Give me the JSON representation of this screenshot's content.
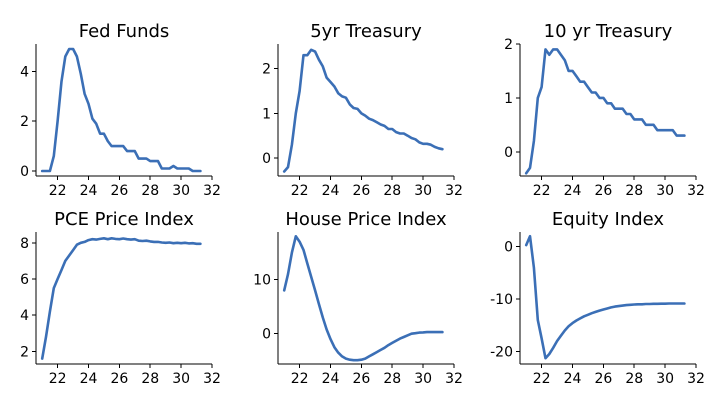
{
  "chart_data": [
    {
      "type": "line",
      "title": "Fed Funds",
      "xlabel": "",
      "ylabel": "",
      "xlim": [
        20.6,
        32
      ],
      "ylim": [
        -0.2,
        5.1
      ],
      "xticks": [
        22,
        24,
        26,
        28,
        30,
        32
      ],
      "yticks": [
        0,
        2,
        4
      ],
      "color": "#3b6fb6",
      "x": [
        21.0,
        21.25,
        21.5,
        21.75,
        22.0,
        22.25,
        22.5,
        22.75,
        23.0,
        23.25,
        23.5,
        23.75,
        24.0,
        24.25,
        24.5,
        24.75,
        25.0,
        25.25,
        25.5,
        25.75,
        26.0,
        26.25,
        26.5,
        26.75,
        27.0,
        27.25,
        27.5,
        27.75,
        28.0,
        28.25,
        28.5,
        28.75,
        29.0,
        29.25,
        29.5,
        29.75,
        30.0,
        30.25,
        30.5,
        30.75,
        31.0,
        31.25
      ],
      "y": [
        0,
        0,
        0,
        0.6,
        2.0,
        3.6,
        4.6,
        4.9,
        4.9,
        4.6,
        3.9,
        3.1,
        2.7,
        2.1,
        1.9,
        1.5,
        1.5,
        1.2,
        1.0,
        1.0,
        1.0,
        1.0,
        0.8,
        0.8,
        0.8,
        0.5,
        0.5,
        0.5,
        0.4,
        0.4,
        0.4,
        0.1,
        0.1,
        0.1,
        0.2,
        0.1,
        0.1,
        0.1,
        0.1,
        0,
        0,
        0
      ]
    },
    {
      "type": "line",
      "title": "5yr Treasury",
      "xlabel": "",
      "ylabel": "",
      "xlim": [
        20.6,
        32
      ],
      "ylim": [
        -0.4,
        2.55
      ],
      "xticks": [
        22,
        24,
        26,
        28,
        30,
        32
      ],
      "yticks": [
        0,
        1,
        2
      ],
      "color": "#3b6fb6",
      "x": [
        21.0,
        21.25,
        21.5,
        21.75,
        22.0,
        22.25,
        22.5,
        22.75,
        23.0,
        23.25,
        23.5,
        23.75,
        24.0,
        24.25,
        24.5,
        24.75,
        25.0,
        25.25,
        25.5,
        25.75,
        26.0,
        26.25,
        26.5,
        26.75,
        27.0,
        27.25,
        27.5,
        27.75,
        28.0,
        28.25,
        28.5,
        28.75,
        29.0,
        29.25,
        29.5,
        29.75,
        30.0,
        30.25,
        30.5,
        30.75,
        31.0,
        31.25
      ],
      "y": [
        -0.3,
        -0.2,
        0.3,
        1.0,
        1.5,
        2.3,
        2.3,
        2.42,
        2.38,
        2.2,
        2.05,
        1.8,
        1.7,
        1.6,
        1.45,
        1.38,
        1.35,
        1.2,
        1.12,
        1.1,
        1.0,
        0.95,
        0.88,
        0.85,
        0.8,
        0.75,
        0.72,
        0.65,
        0.65,
        0.58,
        0.55,
        0.55,
        0.5,
        0.45,
        0.42,
        0.35,
        0.32,
        0.32,
        0.3,
        0.25,
        0.22,
        0.2
      ]
    },
    {
      "type": "line",
      "title": "10 yr Treasury",
      "xlabel": "",
      "ylabel": "",
      "xlim": [
        20.6,
        32
      ],
      "ylim": [
        -0.45,
        2.0
      ],
      "xticks": [
        22,
        24,
        26,
        28,
        30,
        32
      ],
      "yticks": [
        0,
        1,
        2
      ],
      "color": "#3b6fb6",
      "x": [
        21.0,
        21.25,
        21.5,
        21.75,
        22.0,
        22.25,
        22.5,
        22.75,
        23.0,
        23.25,
        23.5,
        23.75,
        24.0,
        24.25,
        24.5,
        24.75,
        25.0,
        25.25,
        25.5,
        25.75,
        26.0,
        26.25,
        26.5,
        26.75,
        27.0,
        27.25,
        27.5,
        27.75,
        28.0,
        28.25,
        28.5,
        28.75,
        29.0,
        29.25,
        29.5,
        29.75,
        30.0,
        30.25,
        30.5,
        30.75,
        31.0,
        31.25
      ],
      "y": [
        -0.4,
        -0.3,
        0.2,
        1.0,
        1.2,
        1.9,
        1.8,
        1.9,
        1.9,
        1.8,
        1.7,
        1.5,
        1.5,
        1.4,
        1.3,
        1.3,
        1.2,
        1.1,
        1.1,
        1.0,
        1.0,
        0.9,
        0.9,
        0.8,
        0.8,
        0.8,
        0.7,
        0.7,
        0.6,
        0.6,
        0.6,
        0.5,
        0.5,
        0.5,
        0.4,
        0.4,
        0.4,
        0.4,
        0.4,
        0.3,
        0.3,
        0.3
      ]
    },
    {
      "type": "line",
      "title": "PCE Price Index",
      "xlabel": "",
      "ylabel": "",
      "xlim": [
        20.6,
        32
      ],
      "ylim": [
        1.3,
        8.6
      ],
      "xticks": [
        22,
        24,
        26,
        28,
        30,
        32
      ],
      "yticks": [
        2,
        4,
        6,
        8
      ],
      "color": "#3b6fb6",
      "x": [
        21.0,
        21.25,
        21.5,
        21.75,
        22.0,
        22.25,
        22.5,
        22.75,
        23.0,
        23.25,
        23.5,
        23.75,
        24.0,
        24.25,
        24.5,
        24.75,
        25.0,
        25.25,
        25.5,
        25.75,
        26.0,
        26.25,
        26.5,
        26.75,
        27.0,
        27.25,
        27.5,
        27.75,
        28.0,
        28.25,
        28.5,
        28.75,
        29.0,
        29.25,
        29.5,
        29.75,
        30.0,
        30.25,
        30.5,
        30.75,
        31.0,
        31.25
      ],
      "y": [
        1.6,
        2.8,
        4.2,
        5.5,
        6.0,
        6.5,
        7.0,
        7.3,
        7.6,
        7.9,
        8.0,
        8.05,
        8.15,
        8.2,
        8.18,
        8.22,
        8.25,
        8.2,
        8.25,
        8.22,
        8.2,
        8.24,
        8.2,
        8.18,
        8.2,
        8.12,
        8.1,
        8.12,
        8.08,
        8.05,
        8.05,
        8.02,
        8.0,
        8.02,
        7.98,
        8.0,
        7.98,
        8.0,
        7.97,
        7.98,
        7.95,
        7.95
      ]
    },
    {
      "type": "line",
      "title": "House Price Index",
      "xlabel": "",
      "ylabel": "",
      "xlim": [
        20.6,
        32
      ],
      "ylim": [
        -5.6,
        18.8
      ],
      "xticks": [
        22,
        24,
        26,
        28,
        30,
        32
      ],
      "yticks": [
        0,
        10
      ],
      "color": "#3b6fb6",
      "x": [
        21.0,
        21.25,
        21.5,
        21.75,
        22.0,
        22.25,
        22.5,
        22.75,
        23.0,
        23.25,
        23.5,
        23.75,
        24.0,
        24.25,
        24.5,
        24.75,
        25.0,
        25.25,
        25.5,
        25.75,
        26.0,
        26.25,
        26.5,
        26.75,
        27.0,
        27.25,
        27.5,
        27.75,
        28.0,
        28.25,
        28.5,
        28.75,
        29.0,
        29.25,
        29.5,
        29.75,
        30.0,
        30.25,
        30.5,
        30.75,
        31.0,
        31.25
      ],
      "y": [
        8.0,
        11.0,
        15.0,
        18.0,
        17.0,
        15.5,
        13.0,
        10.5,
        8.0,
        5.5,
        3.0,
        0.8,
        -1.0,
        -2.5,
        -3.5,
        -4.2,
        -4.6,
        -4.8,
        -4.9,
        -4.9,
        -4.8,
        -4.6,
        -4.2,
        -3.8,
        -3.4,
        -3.0,
        -2.6,
        -2.1,
        -1.7,
        -1.3,
        -0.9,
        -0.6,
        -0.3,
        0.0,
        0.1,
        0.2,
        0.25,
        0.3,
        0.3,
        0.3,
        0.3,
        0.3
      ]
    },
    {
      "type": "line",
      "title": "Equity Index",
      "xlabel": "",
      "ylabel": "",
      "xlim": [
        20.6,
        32
      ],
      "ylim": [
        -22.4,
        2.8
      ],
      "xticks": [
        22,
        24,
        26,
        28,
        30,
        32
      ],
      "yticks": [
        0,
        -10,
        -20
      ],
      "color": "#3b6fb6",
      "x": [
        21.0,
        21.25,
        21.5,
        21.75,
        22.0,
        22.25,
        22.5,
        22.75,
        23.0,
        23.25,
        23.5,
        23.75,
        24.0,
        24.25,
        24.5,
        24.75,
        25.0,
        25.25,
        25.5,
        25.75,
        26.0,
        26.25,
        26.5,
        26.75,
        27.0,
        27.25,
        27.5,
        27.75,
        28.0,
        28.25,
        28.5,
        28.75,
        29.0,
        29.25,
        29.5,
        29.75,
        30.0,
        30.25,
        30.5,
        30.75,
        31.0,
        31.25
      ],
      "y": [
        0.3,
        2.0,
        -4.0,
        -14.0,
        -17.5,
        -21.3,
        -20.5,
        -19.3,
        -18.0,
        -17.0,
        -16.0,
        -15.2,
        -14.6,
        -14.1,
        -13.7,
        -13.3,
        -13.0,
        -12.7,
        -12.45,
        -12.2,
        -12.0,
        -11.8,
        -11.6,
        -11.45,
        -11.35,
        -11.25,
        -11.15,
        -11.1,
        -11.05,
        -11.0,
        -11.0,
        -10.95,
        -10.95,
        -10.9,
        -10.9,
        -10.88,
        -10.88,
        -10.85,
        -10.85,
        -10.85,
        -10.85,
        -10.85
      ]
    }
  ]
}
